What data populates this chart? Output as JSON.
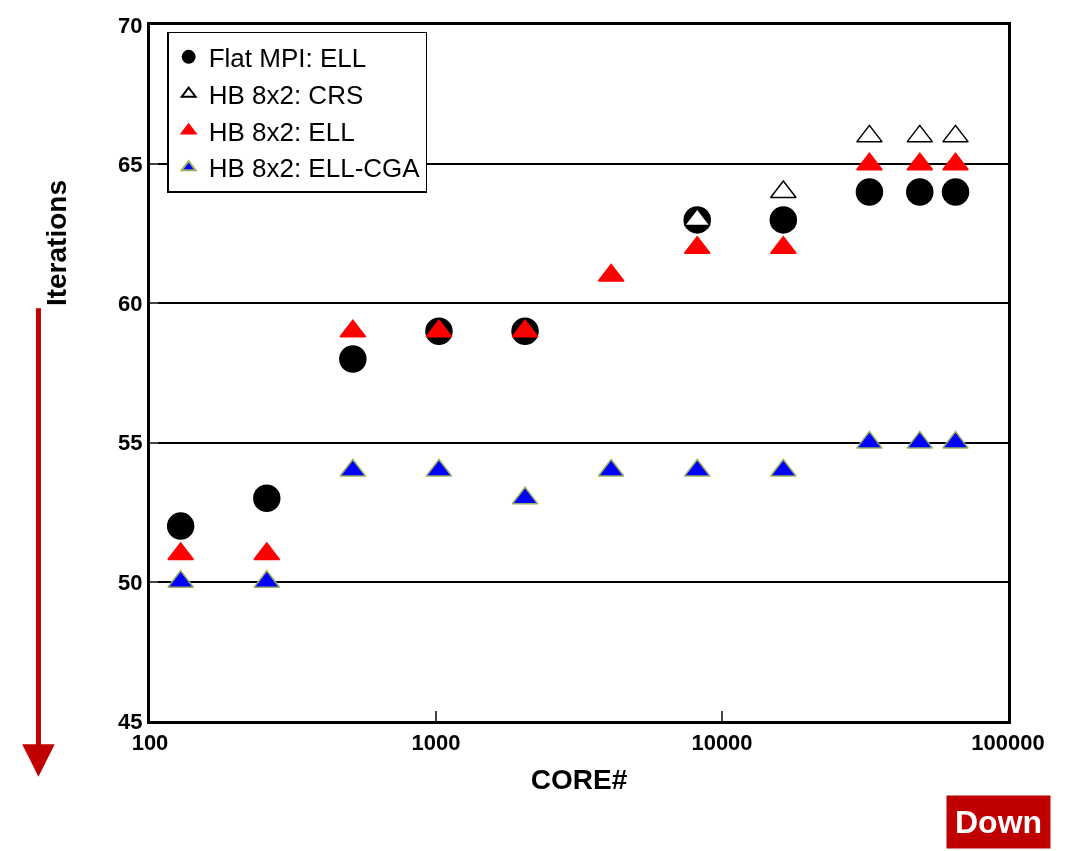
{
  "chart_data": {
    "type": "scatter",
    "xlabel": "CORE#",
    "ylabel": "Iterations",
    "log": "x",
    "x": [
      128,
      256,
      512,
      1024,
      2048,
      4096,
      8192,
      16384,
      32768,
      49152,
      65536
    ],
    "series": [
      {
        "name": "Flat MPI: ELL",
        "color": "#000000",
        "marker": "circle",
        "values": [
          52,
          53,
          58,
          59,
          59,
          null,
          63,
          63,
          64,
          64,
          64
        ]
      },
      {
        "name": "HB 8x2: CRS",
        "color": "#ffffff",
        "marker": "triangle",
        "values": [
          null,
          null,
          null,
          null,
          null,
          null,
          63,
          64,
          66,
          66,
          66
        ]
      },
      {
        "name": "HB 8x2: ELL",
        "color": "#ff0000",
        "marker": "triangle",
        "values": [
          51,
          51,
          59,
          59,
          59,
          61,
          62,
          62,
          65,
          65,
          65
        ]
      },
      {
        "name": "HB 8x2: ELL-CGA",
        "color": "#0000ff",
        "marker": "triangle",
        "values": [
          50,
          50,
          54,
          54,
          53,
          54,
          54,
          54,
          55,
          55,
          55
        ]
      }
    ],
    "xlim": [
      100,
      100000
    ],
    "xticks": [
      100,
      1000,
      10000,
      100000
    ],
    "ylim": [
      45,
      70
    ],
    "yticks": [
      45,
      50,
      55,
      60,
      65,
      70
    ],
    "grid": "y",
    "legend": "top left",
    "annotations": [
      "Down"
    ]
  }
}
